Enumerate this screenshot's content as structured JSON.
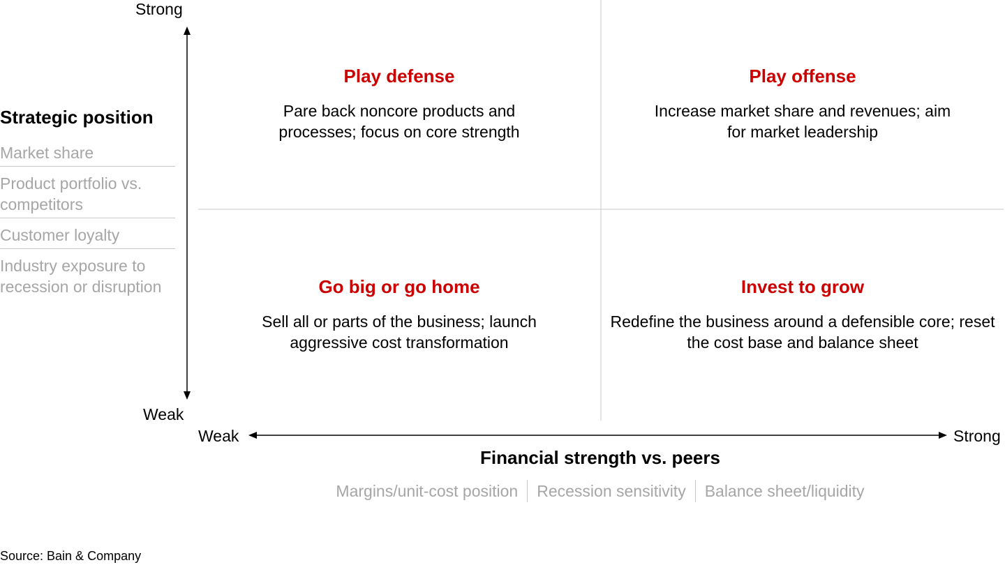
{
  "colors": {
    "accent": "#cc0000",
    "muted": "#a6a6a6",
    "divider": "#c8c8c8"
  },
  "y_axis": {
    "top_label": "Strong",
    "bottom_label": "Weak"
  },
  "x_axis": {
    "left_label": "Weak",
    "right_label": "Strong"
  },
  "strategic_position": {
    "title": "Strategic position",
    "criteria": [
      "Market share",
      "Product portfolio vs. competitors",
      "Customer loyalty",
      "Industry exposure to recession or disruption"
    ]
  },
  "quadrants": {
    "top_left": {
      "title": "Play defense",
      "description": "Pare back noncore products and processes; focus on core strength"
    },
    "top_right": {
      "title": "Play offense",
      "description": "Increase market share and revenues; aim for market leadership"
    },
    "bottom_left": {
      "title": "Go big or go home",
      "description": "Sell all or parts of the business; launch aggressive cost transformation"
    },
    "bottom_right": {
      "title": "Invest to grow",
      "description": "Redefine the business around a defensible core; reset the cost base and balance sheet"
    }
  },
  "financial_strength": {
    "title": "Financial strength vs. peers",
    "criteria": [
      "Margins/unit-cost position",
      "Recession sensitivity",
      "Balance sheet/liquidity"
    ]
  },
  "source": "Source: Bain & Company"
}
